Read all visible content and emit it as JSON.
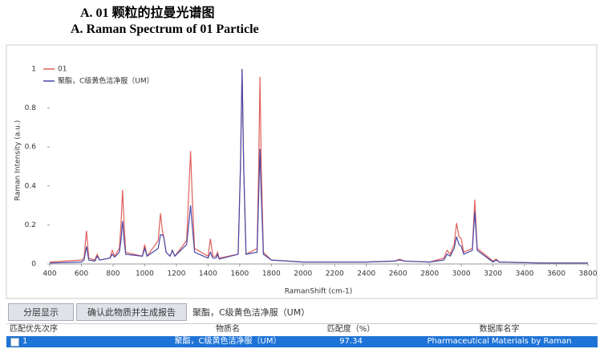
{
  "header": {
    "title_cn": "A.   01 颗粒的拉曼光谱图",
    "title_en": "A. Raman Spectrum of 01 Particle"
  },
  "chart_data": {
    "type": "line",
    "xlabel": "RamanShift (cm-1)",
    "ylabel": "Raman Intensity (a.u.)",
    "x": [
      400,
      600,
      617,
      632,
      647,
      685,
      700,
      715,
      780,
      795,
      810,
      840,
      850,
      860,
      870,
      880,
      985,
      1000,
      1015,
      1085,
      1100,
      1110,
      1120,
      1135,
      1160,
      1175,
      1190,
      1265,
      1280,
      1290,
      1300,
      1315,
      1400,
      1415,
      1430,
      1450,
      1460,
      1470,
      1590,
      1605,
      1615,
      1625,
      1640,
      1710,
      1720,
      1728,
      1736,
      1750,
      1800,
      2000,
      2400,
      2580,
      2610,
      2640,
      2800,
      2890,
      2910,
      2930,
      2955,
      2970,
      2985,
      3000,
      3015,
      3070,
      3085,
      3100,
      3200,
      3220,
      3240,
      3500,
      3800
    ],
    "series": [
      {
        "name": "01",
        "color": "#e0605a",
        "values": [
          0.01,
          0.02,
          0.03,
          0.17,
          0.03,
          0.02,
          0.05,
          0.02,
          0.03,
          0.07,
          0.04,
          0.08,
          0.2,
          0.38,
          0.2,
          0.06,
          0.04,
          0.1,
          0.04,
          0.12,
          0.26,
          0.18,
          0.14,
          0.06,
          0.04,
          0.07,
          0.04,
          0.12,
          0.4,
          0.58,
          0.35,
          0.08,
          0.04,
          0.13,
          0.04,
          0.04,
          0.06,
          0.03,
          0.05,
          0.5,
          1,
          0.5,
          0.05,
          0.08,
          0.5,
          0.96,
          0.5,
          0.06,
          0.02,
          0.01,
          0.01,
          0.015,
          0.025,
          0.015,
          0.01,
          0.03,
          0.07,
          0.05,
          0.1,
          0.21,
          0.14,
          0.13,
          0.06,
          0.08,
          0.33,
          0.08,
          0.015,
          0.025,
          0.01,
          0.005,
          0.005
        ]
      },
      {
        "name": "聚酯，C级黄色洁净服（UM）",
        "color": "#4a48a8",
        "values": [
          0.005,
          0.01,
          0.02,
          0.09,
          0.02,
          0.015,
          0.04,
          0.02,
          0.03,
          0.05,
          0.035,
          0.06,
          0.12,
          0.22,
          0.12,
          0.05,
          0.04,
          0.08,
          0.04,
          0.08,
          0.15,
          0.15,
          0.14,
          0.06,
          0.04,
          0.07,
          0.04,
          0.1,
          0.22,
          0.3,
          0.2,
          0.06,
          0.03,
          0.06,
          0.03,
          0.03,
          0.05,
          0.025,
          0.05,
          0.5,
          1,
          0.5,
          0.05,
          0.06,
          0.35,
          0.59,
          0.35,
          0.05,
          0.02,
          0.01,
          0.01,
          0.015,
          0.02,
          0.015,
          0.01,
          0.02,
          0.05,
          0.04,
          0.08,
          0.14,
          0.1,
          0.09,
          0.05,
          0.07,
          0.27,
          0.07,
          0.01,
          0.02,
          0.01,
          0.005,
          0.005
        ]
      }
    ],
    "xlim": [
      400,
      3800
    ],
    "xticks": [
      400,
      600,
      800,
      1000,
      1200,
      1400,
      1600,
      1800,
      2000,
      2200,
      2400,
      2600,
      2800,
      3000,
      3200,
      3400,
      3600,
      3800
    ],
    "ylim": [
      0,
      1
    ],
    "yticks": [
      0,
      0.2,
      0.4,
      0.6,
      0.8,
      1
    ],
    "legend": "upper-left"
  },
  "toolbar": {
    "buttons": [
      "分层显示",
      "确认此物质并生成报告"
    ],
    "selected": "聚酯，C级黄色洁净服（UM）"
  },
  "table": {
    "columns": [
      "匹配优先次序",
      "物质名",
      "匹配度（%）",
      "数据库名字"
    ],
    "rows": [
      [
        "1",
        "聚酯，C级黄色洁净服（UM）",
        "97.34",
        "Pharmaceutical Materials by Raman"
      ]
    ]
  }
}
